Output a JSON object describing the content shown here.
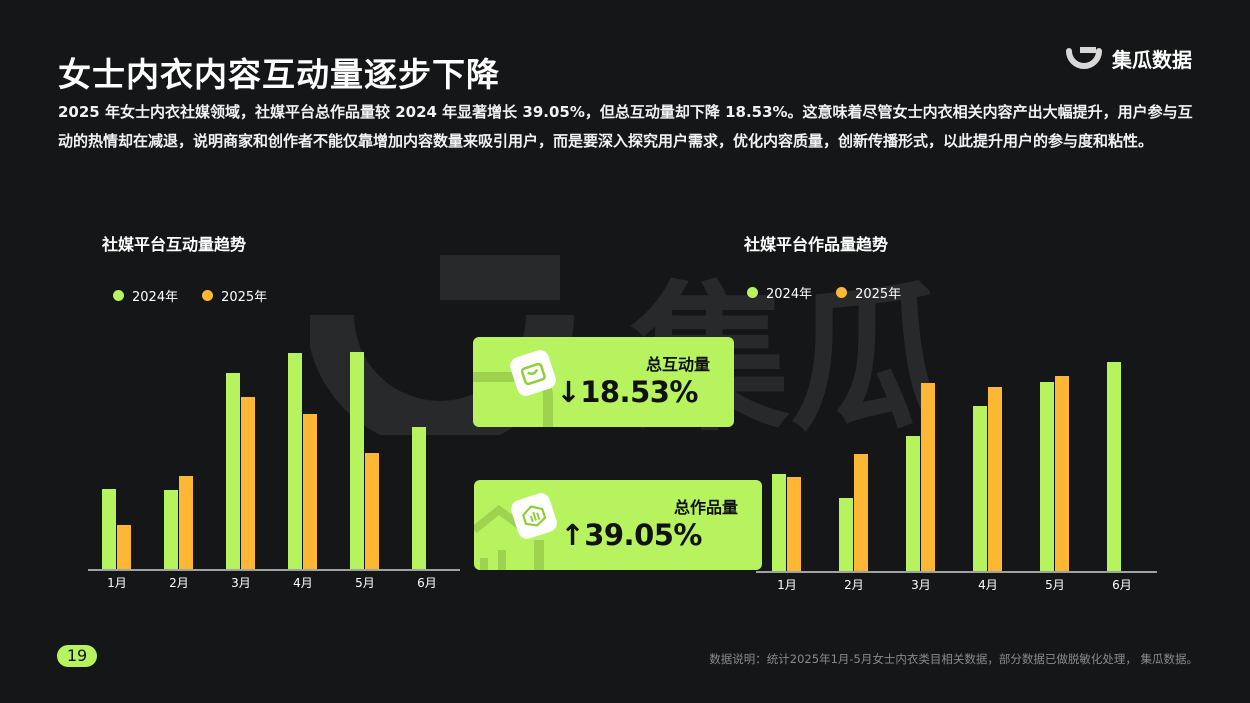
{
  "title": "女士内衣内容互动量逐步下降",
  "brand": {
    "name": "集瓜数据",
    "icon": "jigua-logo-icon"
  },
  "description": "2025 年女士内衣社媒领域，社媒平台总作品量较 2024 年显著增长 39.05%，但总互动量却下降 18.53%。这意味着尽管女士内衣相关内容产出大幅提升，用户参与互动的热情却在减退，说明商家和创作者不能仅靠增加内容数量来吸引用户，而是要深入探究用户需求，优化内容质量，创新传播形式，以此提升用户的参与度和粘性。",
  "watermark_text": "集瓜",
  "colors": {
    "series_2024": "#b7f25f",
    "series_2025": "#fdb735",
    "background": "#151617"
  },
  "kpis": [
    {
      "label": "总互动量",
      "arrow": "↓",
      "value": "18.53%",
      "icon": "bag-icon"
    },
    {
      "label": "总作品量",
      "arrow": "↑",
      "value": "39.05%",
      "icon": "chart-icon"
    }
  ],
  "page_number": "19",
  "footnote": "数据说明：统计2025年1月-5月女士内衣类目相关数据，部分数据已做脱敏化处理， 集瓜数据。",
  "chart_data": [
    {
      "type": "bar",
      "title": "社媒平台互动量趋势",
      "categories": [
        "1月",
        "2月",
        "3月",
        "4月",
        "5月",
        "6月"
      ],
      "series": [
        {
          "name": "2024年",
          "values": [
            80,
            79,
            196,
            216,
            217,
            142
          ]
        },
        {
          "name": "2025年",
          "values": [
            44,
            93,
            172,
            155,
            116,
            null
          ]
        }
      ],
      "ylim": [
        0,
        240
      ],
      "legend": "top-left",
      "grid": false
    },
    {
      "type": "bar",
      "title": "社媒平台作品量趋势",
      "categories": [
        "1月",
        "2月",
        "3月",
        "4月",
        "5月",
        "6月"
      ],
      "series": [
        {
          "name": "2024年",
          "values": [
            97,
            73,
            135,
            165,
            189,
            209
          ]
        },
        {
          "name": "2025年",
          "values": [
            94,
            117,
            188,
            184,
            195,
            null
          ]
        }
      ],
      "ylim": [
        0,
        240
      ],
      "legend": "top-left",
      "grid": false
    }
  ]
}
